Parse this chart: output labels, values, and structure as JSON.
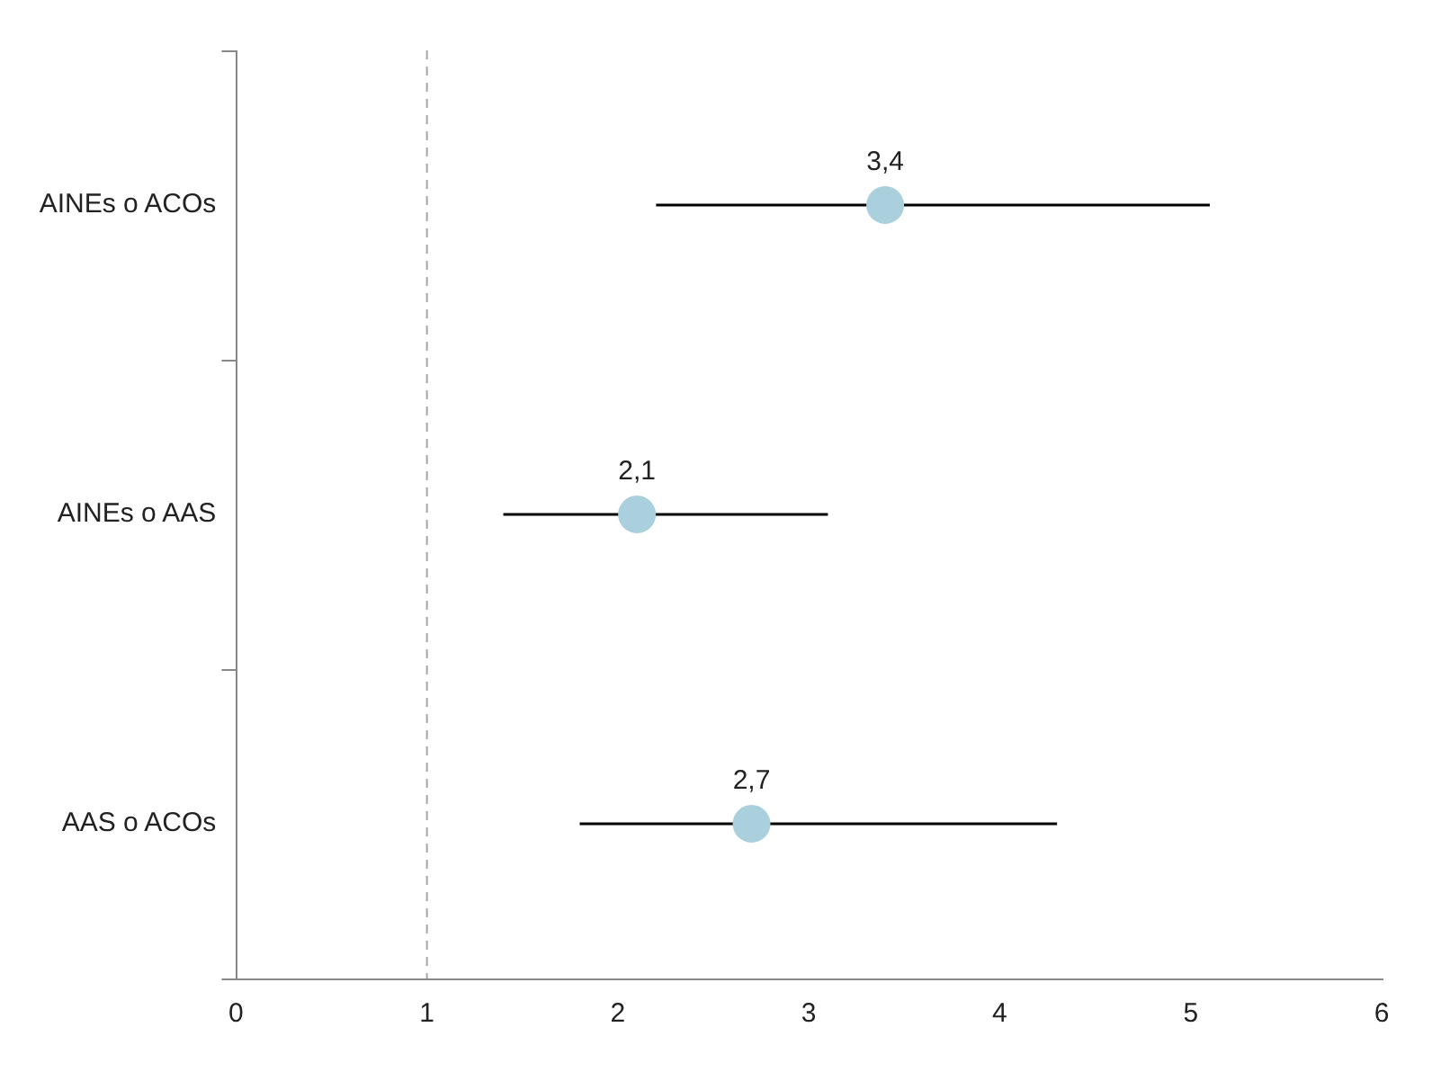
{
  "chart_data": {
    "type": "scatter",
    "orientation": "horizontal",
    "categories": [
      "AINEs o ACOs",
      "AINEs o AAS",
      "AAS o ACOs"
    ],
    "values": [
      3.4,
      2.1,
      2.7
    ],
    "errors": [
      [
        2.2,
        5.1
      ],
      [
        1.4,
        3.1
      ],
      [
        1.8,
        4.3
      ]
    ],
    "value_labels": [
      "3,4",
      "2,1",
      "2,7"
    ],
    "color": "#a9d0dc",
    "marker": "circle",
    "xlim": [
      0,
      6
    ],
    "xticks": [
      0,
      1,
      2,
      3,
      4,
      5,
      6
    ],
    "ref_lines": [
      {
        "axis": "x",
        "value": 1,
        "color": "#a6a6a6",
        "line_style": "dashed"
      }
    ],
    "grid": false,
    "legend": false
  }
}
